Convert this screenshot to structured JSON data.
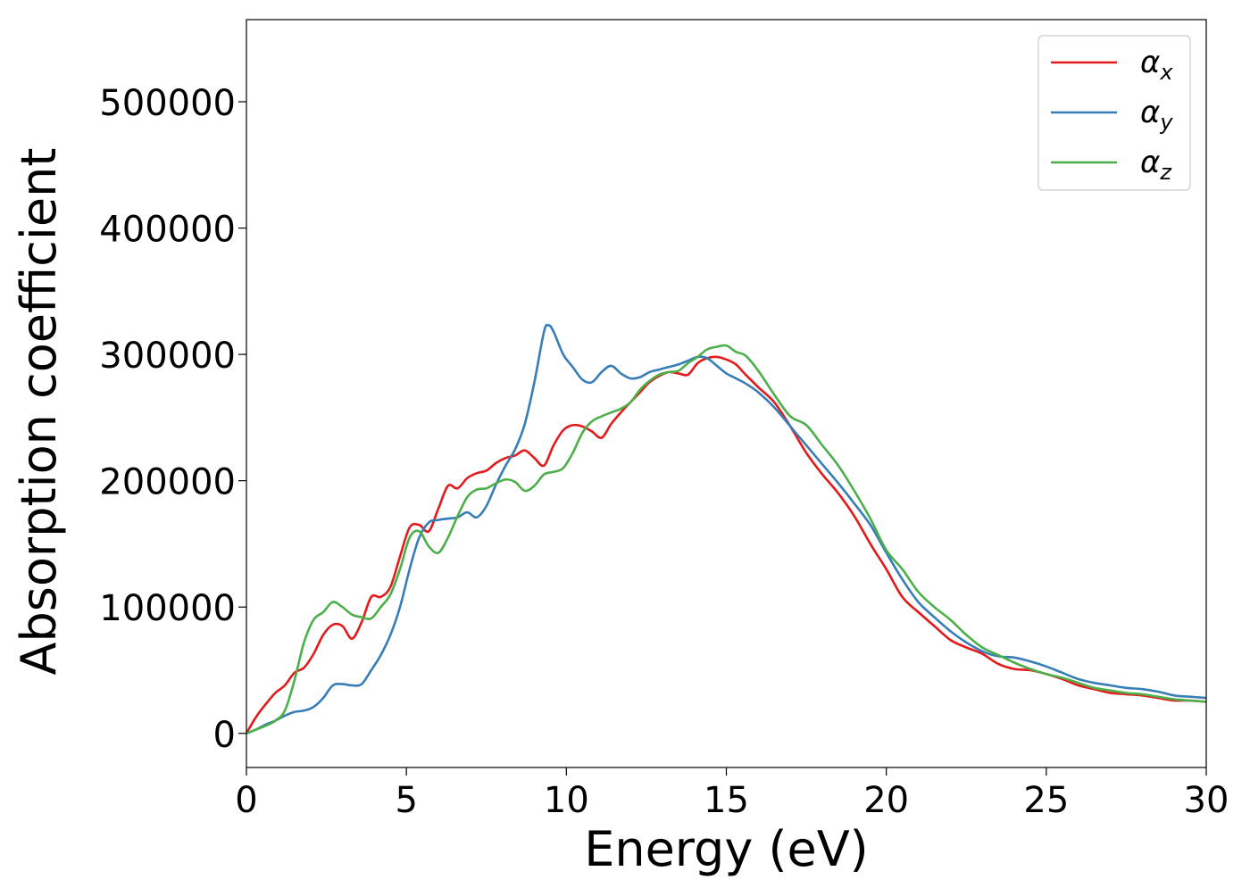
{
  "chart_data": {
    "type": "line",
    "xlabel": "Energy (eV)",
    "ylabel": "Absorption coefficient",
    "xlim": [
      0,
      30
    ],
    "ylim": [
      -27000,
      565000
    ],
    "xticks": [
      0,
      5,
      10,
      15,
      20,
      25,
      30
    ],
    "xtick_labels": [
      "0",
      "5",
      "10",
      "15",
      "20",
      "25",
      "30"
    ],
    "yticks": [
      0,
      100000,
      200000,
      300000,
      400000,
      500000
    ],
    "ytick_labels": [
      "0",
      "100000",
      "200000",
      "300000",
      "400000",
      "500000"
    ],
    "grid": false,
    "legend_position": "top-right",
    "series": [
      {
        "name": "α",
        "subscript": "x",
        "color": "#e41a1c",
        "x": [
          0,
          0.3,
          0.6,
          0.9,
          1.2,
          1.5,
          1.8,
          2.1,
          2.4,
          2.7,
          3.0,
          3.3,
          3.6,
          3.9,
          4.2,
          4.5,
          4.8,
          5.1,
          5.4,
          5.7,
          6.0,
          6.3,
          6.6,
          6.9,
          7.2,
          7.5,
          7.8,
          8.1,
          8.4,
          8.7,
          9.0,
          9.3,
          9.6,
          9.9,
          10.2,
          10.5,
          10.8,
          11.1,
          11.4,
          11.7,
          12.0,
          12.3,
          12.6,
          12.9,
          13.2,
          13.5,
          13.8,
          14.1,
          14.4,
          14.7,
          15.0,
          15.3,
          15.6,
          16.0,
          16.5,
          17.0,
          17.5,
          18.0,
          18.5,
          19.0,
          19.5,
          20.0,
          20.5,
          21.0,
          21.5,
          22.0,
          22.5,
          23.0,
          23.5,
          24.0,
          24.5,
          25.0,
          25.5,
          26.0,
          26.5,
          27.0,
          27.5,
          28.0,
          28.5,
          29.0,
          29.5,
          30.0
        ],
        "y": [
          0,
          13000,
          23000,
          32000,
          38000,
          48000,
          52000,
          63000,
          78000,
          86000,
          85000,
          75000,
          88000,
          108000,
          108000,
          116000,
          140000,
          163000,
          165000,
          160000,
          178000,
          196000,
          194000,
          202000,
          206000,
          208000,
          214000,
          218000,
          220000,
          224000,
          218000,
          212000,
          228000,
          240000,
          244000,
          243000,
          239000,
          234000,
          245000,
          254000,
          262000,
          270000,
          278000,
          283000,
          286000,
          285000,
          284000,
          293000,
          297000,
          298000,
          296000,
          292000,
          284000,
          274000,
          262000,
          243000,
          222000,
          205000,
          190000,
          172000,
          150000,
          130000,
          108000,
          96000,
          85000,
          74000,
          68000,
          63000,
          55000,
          51000,
          50000,
          47000,
          43000,
          38000,
          35000,
          32000,
          31000,
          30000,
          28000,
          26000,
          26000,
          25000
        ]
      },
      {
        "name": "α",
        "subscript": "y",
        "color": "#377eb8",
        "x": [
          0,
          0.3,
          0.6,
          0.9,
          1.2,
          1.5,
          1.8,
          2.1,
          2.4,
          2.7,
          3.0,
          3.3,
          3.6,
          3.9,
          4.2,
          4.5,
          4.8,
          5.1,
          5.4,
          5.7,
          6.0,
          6.3,
          6.6,
          6.9,
          7.2,
          7.5,
          7.8,
          8.1,
          8.4,
          8.7,
          9.0,
          9.3,
          9.45,
          9.6,
          9.9,
          10.2,
          10.5,
          10.8,
          11.1,
          11.4,
          11.7,
          12.0,
          12.3,
          12.6,
          12.9,
          13.2,
          13.5,
          13.8,
          14.1,
          14.4,
          14.7,
          15.0,
          15.3,
          15.6,
          16.0,
          16.5,
          17.0,
          17.5,
          18.0,
          18.5,
          19.0,
          19.5,
          20.0,
          20.5,
          21.0,
          21.5,
          22.0,
          22.5,
          23.0,
          23.5,
          24.0,
          24.5,
          25.0,
          25.5,
          26.0,
          26.5,
          27.0,
          27.5,
          28.0,
          28.5,
          29.0,
          29.5,
          30.0
        ],
        "y": [
          0,
          3000,
          7000,
          10000,
          14000,
          17000,
          18000,
          21000,
          28000,
          38000,
          39000,
          38000,
          39000,
          50000,
          62000,
          78000,
          100000,
          130000,
          155000,
          167000,
          169000,
          170000,
          171000,
          175000,
          171000,
          180000,
          197000,
          212000,
          225000,
          245000,
          278000,
          318000,
          323000,
          318000,
          300000,
          290000,
          280000,
          278000,
          286000,
          291000,
          285000,
          281000,
          282000,
          286000,
          288000,
          290000,
          292000,
          295000,
          298000,
          297000,
          291000,
          285000,
          281000,
          277000,
          270000,
          258000,
          243000,
          228000,
          213000,
          198000,
          182000,
          165000,
          143000,
          122000,
          104000,
          92000,
          81000,
          72000,
          65000,
          61000,
          60000,
          57000,
          53000,
          48000,
          43000,
          40000,
          38000,
          36000,
          35000,
          33000,
          30000,
          29000,
          28000
        ]
      },
      {
        "name": "α",
        "subscript": "z",
        "color": "#4daf4a",
        "x": [
          0,
          0.3,
          0.6,
          0.9,
          1.2,
          1.5,
          1.8,
          2.1,
          2.4,
          2.7,
          3.0,
          3.3,
          3.6,
          3.9,
          4.2,
          4.5,
          4.8,
          5.1,
          5.4,
          5.7,
          6.0,
          6.3,
          6.6,
          6.9,
          7.2,
          7.5,
          7.8,
          8.1,
          8.4,
          8.7,
          9.0,
          9.3,
          9.6,
          9.9,
          10.2,
          10.5,
          10.8,
          11.1,
          11.4,
          11.7,
          12.0,
          12.3,
          12.6,
          12.9,
          13.2,
          13.5,
          13.8,
          14.1,
          14.4,
          14.7,
          15.0,
          15.3,
          15.6,
          16.0,
          16.5,
          17.0,
          17.5,
          18.0,
          18.5,
          19.0,
          19.5,
          20.0,
          20.5,
          21.0,
          21.5,
          22.0,
          22.5,
          23.0,
          23.5,
          24.0,
          24.5,
          25.0,
          25.5,
          26.0,
          26.5,
          27.0,
          27.5,
          28.0,
          28.5,
          29.0,
          29.5,
          30.0
        ],
        "y": [
          0,
          3000,
          6000,
          10000,
          18000,
          42000,
          72000,
          90000,
          96000,
          104000,
          100000,
          94000,
          92000,
          91000,
          100000,
          110000,
          130000,
          155000,
          160000,
          148000,
          143000,
          155000,
          172000,
          187000,
          193000,
          194000,
          198000,
          201000,
          199000,
          192000,
          196000,
          205000,
          207000,
          210000,
          222000,
          238000,
          247000,
          251000,
          254000,
          257000,
          262000,
          272000,
          279000,
          284000,
          286000,
          287000,
          293000,
          298000,
          304000,
          306000,
          307000,
          302000,
          299000,
          287000,
          268000,
          251000,
          244000,
          228000,
          212000,
          192000,
          170000,
          145000,
          130000,
          112000,
          100000,
          90000,
          78000,
          68000,
          62000,
          56000,
          51000,
          47000,
          44000,
          40000,
          36000,
          34000,
          32000,
          31000,
          29000,
          27000,
          26000,
          25000
        ]
      }
    ]
  }
}
